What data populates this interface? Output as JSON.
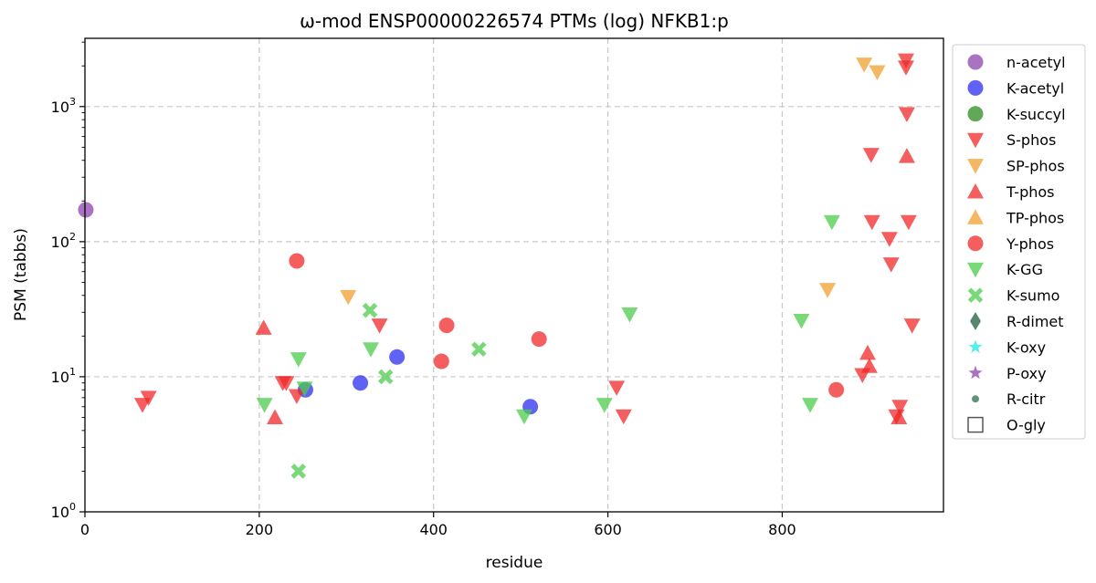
{
  "chart_data": {
    "type": "scatter",
    "title": "ω-mod ENSP00000226574 PTMs (log) NFKB1:p",
    "xlabel": "residue",
    "ylabel": "PSM (tabbs)",
    "xlim": [
      0,
      985
    ],
    "ylim": [
      1,
      3200
    ],
    "yscale": "log",
    "grid": true,
    "legend_placement": "outside-right",
    "x_ticks": [
      {
        "value": 0,
        "label": "0"
      },
      {
        "value": 200,
        "label": "200"
      },
      {
        "value": 400,
        "label": "400"
      },
      {
        "value": 600,
        "label": "600"
      },
      {
        "value": 800,
        "label": "800"
      }
    ],
    "y_ticks": [
      {
        "value": 1,
        "base": "10",
        "exp": "0"
      },
      {
        "value": 10,
        "base": "10",
        "exp": "1"
      },
      {
        "value": 100,
        "base": "10",
        "exp": "2"
      },
      {
        "value": 1000,
        "base": "10",
        "exp": "3"
      }
    ],
    "series": [
      {
        "name": "n-acetyl",
        "marker": "circle",
        "color": "#8e44ad",
        "points": [
          [
            1,
            172
          ]
        ]
      },
      {
        "name": "K-acetyl",
        "marker": "circle",
        "color": "#2a2ef0",
        "points": [
          [
            253,
            8
          ],
          [
            316,
            9
          ],
          [
            358,
            14
          ],
          [
            511,
            6
          ]
        ]
      },
      {
        "name": "K-succyl",
        "marker": "circle",
        "color": "#2e8b22",
        "points": []
      },
      {
        "name": "S-phos",
        "marker": "triangle-down",
        "color": "#f02828",
        "points": [
          [
            66,
            6.2
          ],
          [
            73,
            7
          ],
          [
            227,
            9
          ],
          [
            231,
            9
          ],
          [
            243,
            7.2
          ],
          [
            338,
            24
          ],
          [
            610,
            8.3
          ],
          [
            618,
            5.1
          ],
          [
            892,
            10.3
          ],
          [
            902,
            440
          ],
          [
            903,
            140
          ],
          [
            923,
            105
          ],
          [
            925,
            68
          ],
          [
            935,
            6
          ],
          [
            942,
            2200
          ],
          [
            942,
            1950
          ],
          [
            943,
            880
          ],
          [
            945,
            140
          ],
          [
            949,
            24
          ],
          [
            931,
            5.1
          ]
        ]
      },
      {
        "name": "SP-phos",
        "marker": "triangle-down",
        "color": "#f0a030",
        "points": [
          [
            302,
            39
          ],
          [
            852,
            44
          ],
          [
            894,
            2050
          ],
          [
            909,
            1800
          ]
        ]
      },
      {
        "name": "T-phos",
        "marker": "triangle-up",
        "color": "#f02828",
        "points": [
          [
            205,
            23
          ],
          [
            218,
            5
          ],
          [
            898,
            15
          ],
          [
            900,
            12
          ],
          [
            934,
            5
          ],
          [
            943,
            430
          ]
        ]
      },
      {
        "name": "TP-phos",
        "marker": "triangle-up",
        "color": "#f0a030",
        "points": []
      },
      {
        "name": "Y-phos",
        "marker": "circle",
        "color": "#f02828",
        "points": [
          [
            243,
            72
          ],
          [
            409,
            13
          ],
          [
            415,
            24
          ],
          [
            521,
            19
          ],
          [
            862,
            8
          ]
        ]
      },
      {
        "name": "K-GG",
        "marker": "triangle-down",
        "color": "#4ccc4c",
        "points": [
          [
            206,
            6.2
          ],
          [
            245,
            13.5
          ],
          [
            252,
            8.2
          ],
          [
            328,
            16
          ],
          [
            504,
            5.1
          ],
          [
            596,
            6.2
          ],
          [
            625,
            29
          ],
          [
            822,
            26
          ],
          [
            832,
            6.2
          ],
          [
            857,
            140
          ]
        ]
      },
      {
        "name": "K-sumo",
        "marker": "x",
        "color": "#4ccc4c",
        "points": [
          [
            245,
            2
          ],
          [
            327,
            31
          ],
          [
            345,
            10
          ],
          [
            452,
            16
          ]
        ]
      },
      {
        "name": "R-dimet",
        "marker": "diamond",
        "color": "#1e5e3e",
        "points": []
      },
      {
        "name": "K-oxy",
        "marker": "star",
        "color": "#22e8e8",
        "points": []
      },
      {
        "name": "P-oxy",
        "marker": "star",
        "color": "#8e44ad",
        "points": []
      },
      {
        "name": "R-citr",
        "marker": "small-circle",
        "color": "#2e6e4e",
        "points": []
      },
      {
        "name": "O-gly",
        "marker": "square-open",
        "color": "#555555",
        "points": []
      }
    ]
  }
}
